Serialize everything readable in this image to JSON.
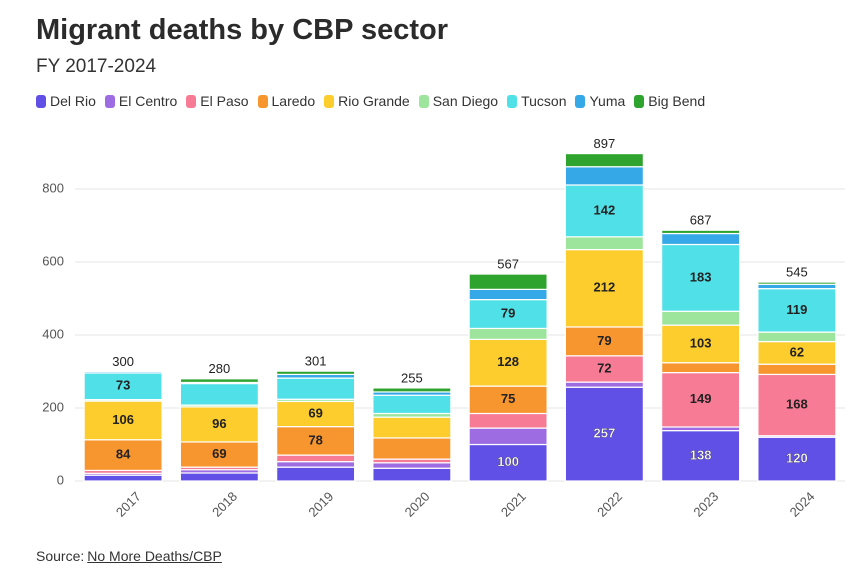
{
  "chart_data": {
    "type": "stacked_bar",
    "title": "Migrant deaths by CBP sector",
    "subtitle": "FY 2017-2024",
    "categories": [
      "2017",
      "2018",
      "2019",
      "2020",
      "2021",
      "2022",
      "2023",
      "2024"
    ],
    "series": [
      {
        "name": "Del Rio",
        "color": "#6150e6",
        "values": [
          16,
          22,
          38,
          35,
          100,
          257,
          138,
          120
        ]
      },
      {
        "name": "El Centro",
        "color": "#9d6be2",
        "values": [
          5,
          9,
          15,
          15,
          45,
          14,
          10,
          4
        ]
      },
      {
        "name": "El Paso",
        "color": "#f77b95",
        "values": [
          8,
          7,
          18,
          10,
          40,
          72,
          149,
          168
        ]
      },
      {
        "name": "Laredo",
        "color": "#f7952f",
        "values": [
          84,
          69,
          78,
          58,
          75,
          79,
          27,
          28
        ]
      },
      {
        "name": "Rio Grande",
        "color": "#fdcd2e",
        "values": [
          106,
          96,
          69,
          57,
          128,
          212,
          103,
          62
        ]
      },
      {
        "name": "San Diego",
        "color": "#9de59d",
        "values": [
          4,
          5,
          6,
          10,
          30,
          35,
          38,
          26
        ]
      },
      {
        "name": "Tucson",
        "color": "#50e0e8",
        "values": [
          73,
          59,
          58,
          50,
          79,
          142,
          183,
          119
        ]
      },
      {
        "name": "Yuma",
        "color": "#35a8e8",
        "values": [
          4,
          3,
          10,
          9,
          28,
          50,
          30,
          12
        ]
      },
      {
        "name": "Big Bend",
        "color": "#2ea42e",
        "values": [
          0,
          10,
          9,
          11,
          42,
          36,
          9,
          6
        ]
      }
    ],
    "totals": [
      300,
      280,
      301,
      255,
      567,
      897,
      687,
      545
    ],
    "ylim": [
      0,
      920
    ],
    "yticks": [
      0,
      200,
      400,
      600,
      800
    ],
    "grid": true
  },
  "source": {
    "prefix": "Source:",
    "link": "No More Deaths/CBP"
  }
}
